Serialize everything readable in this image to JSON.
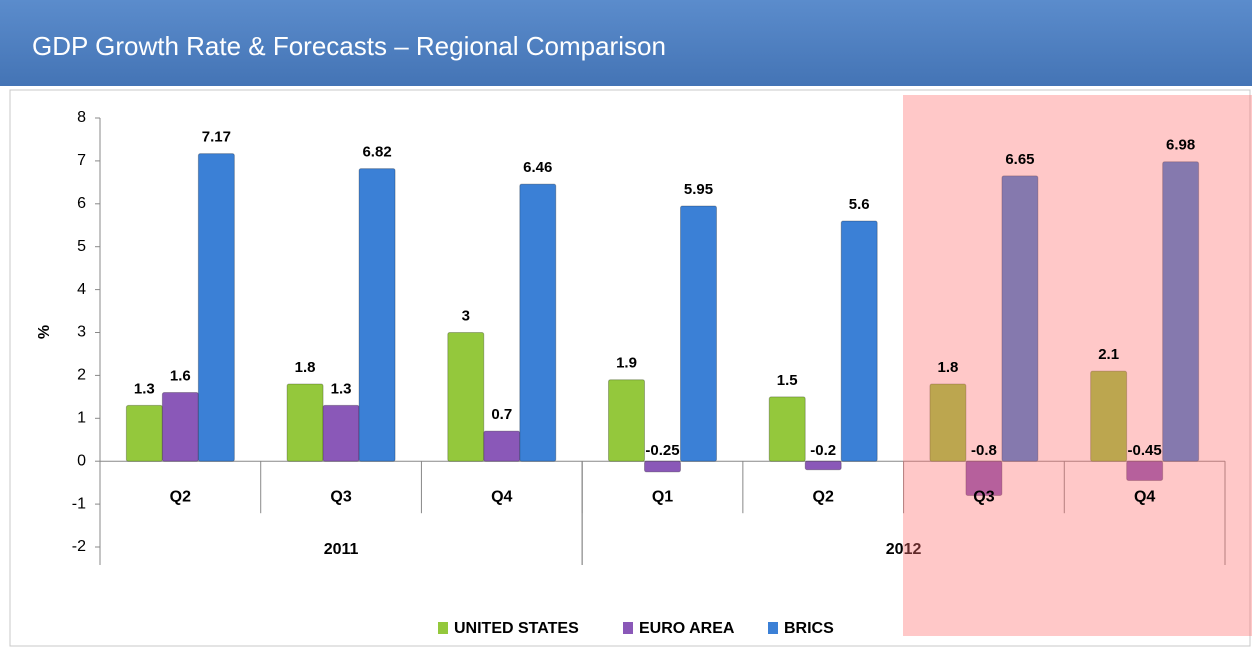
{
  "chart_data": {
    "type": "bar",
    "title": "GDP Growth Rate & Forecasts – Regional Comparison",
    "y_label": "%",
    "categories": [
      "Q2",
      "Q3",
      "Q4",
      "Q1",
      "Q2",
      "Q3",
      "Q4"
    ],
    "category_groups": [
      {
        "label": "2011",
        "count": 3
      },
      {
        "label": "2012",
        "count": 4
      }
    ],
    "series": [
      {
        "name": "UNITED STATES",
        "color": "#94c83c",
        "values": [
          1.3,
          1.8,
          3,
          1.9,
          1.5,
          1.8,
          2.1
        ]
      },
      {
        "name": "EURO AREA",
        "color": "#8a58b8",
        "values": [
          1.6,
          1.3,
          0.7,
          -0.25,
          -0.2,
          -0.8,
          -0.45
        ]
      },
      {
        "name": "BRICS",
        "color": "#3b80d6",
        "values": [
          7.17,
          6.82,
          6.46,
          5.95,
          5.6,
          6.65,
          6.98
        ]
      }
    ],
    "ylim": [
      -2,
      8
    ],
    "yticks": [
      -2,
      -1,
      0,
      1,
      2,
      3,
      4,
      5,
      6,
      7,
      8
    ],
    "legend": "bottom"
  }
}
